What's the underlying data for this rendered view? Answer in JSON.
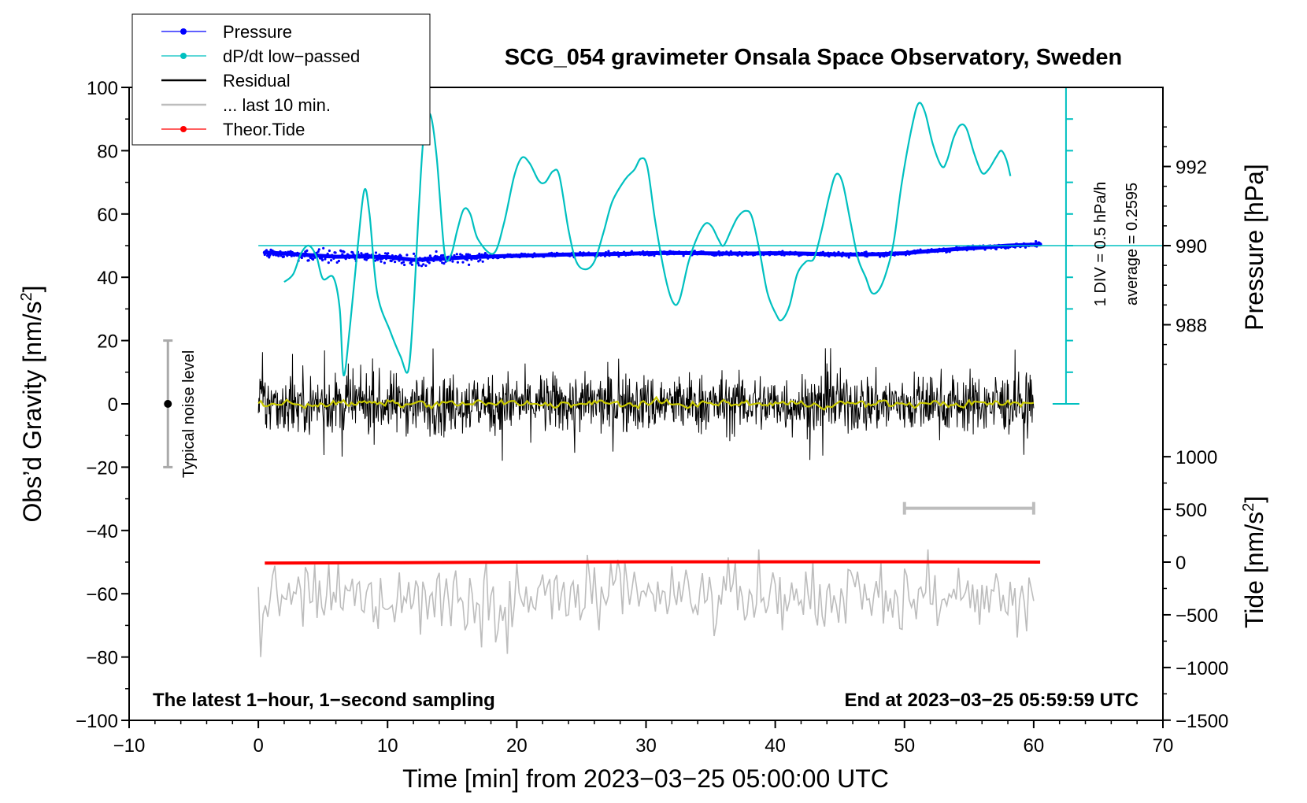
{
  "chart_data": {
    "type": "line",
    "title": "SCG_054 gravimeter Onsala Space Observatory, Sweden",
    "xlabel": "Time [min] from 2023−03−25 05:00:00 UTC",
    "ylabel_left": "Obs’d Gravity [nm/s",
    "ylabel_left_sup": "2",
    "ylabel_left_close": "]",
    "ylabel_pressure": "Pressure [hPa]",
    "ylabel_tide": "Tide [nm/s",
    "ylabel_tide_sup": "2",
    "ylabel_tide_close": "]",
    "xlim": [
      -10,
      70
    ],
    "ylim_left": [
      -100,
      100
    ],
    "x_ticks": [
      -10,
      0,
      10,
      20,
      30,
      40,
      50,
      60,
      70
    ],
    "x_tick_labels": [
      "−10",
      "0",
      "10",
      "20",
      "30",
      "40",
      "50",
      "60",
      "70"
    ],
    "y_ticks_left": [
      -100,
      -80,
      -60,
      -40,
      -20,
      0,
      20,
      40,
      60,
      80,
      100
    ],
    "y_tick_labels_left": [
      "−100",
      "−80",
      "−60",
      "−40",
      "−20",
      "0",
      "20",
      "40",
      "60",
      "80",
      "100"
    ],
    "pressure_axis": {
      "ticks": [
        988,
        990,
        992
      ],
      "tick_labels": [
        "988",
        "990",
        "992"
      ],
      "grav_at_990": 50,
      "grav_per_hpa": 12.5
    },
    "tide_axis": {
      "ticks": [
        -1500,
        -1000,
        -500,
        0,
        500,
        1000
      ],
      "tick_labels": [
        "−1500",
        "−1000",
        "−500",
        "0",
        "500",
        "1000"
      ],
      "grav_at_zero": -50,
      "grav_per_unit": 0.0333
    },
    "legend": {
      "placement": "top-left",
      "entries": [
        {
          "label": "Pressure",
          "color": "#0000ff",
          "marker": true
        },
        {
          "label": "dP/dt low−passed",
          "color": "#00c0c0",
          "marker": true
        },
        {
          "label": "Residual",
          "color": "#000000",
          "marker": false
        },
        {
          "label": "... last 10 min.",
          "color": "#bdbdbd",
          "marker": false
        },
        {
          "label": "Theor.Tide",
          "color": "#ff0000",
          "marker": true
        }
      ]
    },
    "dpdt_scale": {
      "label1": "1 DIV = 0.5 hPa/h",
      "label2": "average = 0.2595",
      "x": 62.5,
      "ymin": 0,
      "ymax": 100,
      "baseline_y": 50,
      "divisions": 10
    },
    "noise_bar": {
      "label": "Typical noise level",
      "x": -7,
      "y": 0,
      "ymin": -20,
      "ymax": 20
    },
    "last10_bracket": {
      "x0": 50,
      "x1": 60,
      "y": -33
    },
    "footer_left": "The latest 1−hour, 1−second sampling",
    "footer_right": "End at 2023−03−25 05:59:59 UTC",
    "series": [
      {
        "name": "Pressure",
        "color": "#0000ff",
        "points": [
          [
            0.5,
            47.8
          ],
          [
            2,
            47.5
          ],
          [
            4,
            47.0
          ],
          [
            6,
            46.5
          ],
          [
            8,
            46.6
          ],
          [
            10,
            46.4
          ],
          [
            12,
            45.5
          ],
          [
            14,
            45.8
          ],
          [
            16,
            46.3
          ],
          [
            18,
            46.6
          ],
          [
            20,
            46.8
          ],
          [
            22,
            47.0
          ],
          [
            24,
            47.2
          ],
          [
            26,
            47.3
          ],
          [
            28,
            47.4
          ],
          [
            30,
            47.6
          ],
          [
            32,
            47.7
          ],
          [
            34,
            47.6
          ],
          [
            36,
            47.5
          ],
          [
            38,
            47.5
          ],
          [
            40,
            47.6
          ],
          [
            42,
            47.5
          ],
          [
            44,
            47.3
          ],
          [
            46,
            47.2
          ],
          [
            48,
            47.3
          ],
          [
            50,
            47.6
          ],
          [
            52,
            48.3
          ],
          [
            54,
            48.9
          ],
          [
            56,
            49.4
          ],
          [
            58,
            50.0
          ],
          [
            60,
            50.3
          ],
          [
            60.5,
            50.4
          ]
        ]
      },
      {
        "name": "dP/dt low−passed",
        "color": "#00c0c0",
        "points": [
          [
            2,
            38.5
          ],
          [
            2.7,
            41
          ],
          [
            3.3,
            47.5
          ],
          [
            3.9,
            50
          ],
          [
            4.5,
            46.5
          ],
          [
            5,
            39.5
          ],
          [
            5.8,
            40
          ],
          [
            6.3,
            30
          ],
          [
            6.6,
            9
          ],
          [
            7.1,
            25
          ],
          [
            7.7,
            50
          ],
          [
            8.2,
            67.5
          ],
          [
            8.6,
            60
          ],
          [
            9.2,
            35
          ],
          [
            10.2,
            23
          ],
          [
            11,
            15
          ],
          [
            11.6,
            10.5
          ],
          [
            12,
            30
          ],
          [
            12.4,
            60
          ],
          [
            12.8,
            85
          ],
          [
            13.3,
            91.5
          ],
          [
            13.8,
            78
          ],
          [
            14.4,
            48
          ],
          [
            14.9,
            47
          ],
          [
            15.4,
            55
          ],
          [
            15.9,
            61.5
          ],
          [
            16.4,
            60
          ],
          [
            17,
            52
          ],
          [
            18.2,
            47.5
          ],
          [
            19,
            57
          ],
          [
            19.8,
            72
          ],
          [
            20.4,
            77.8
          ],
          [
            21,
            76
          ],
          [
            21.7,
            70.5
          ],
          [
            22.2,
            70
          ],
          [
            22.8,
            73.5
          ],
          [
            23.3,
            72
          ],
          [
            24,
            55
          ],
          [
            24.6,
            45
          ],
          [
            25.3,
            42.5
          ],
          [
            26,
            45
          ],
          [
            26.7,
            54
          ],
          [
            27.4,
            64
          ],
          [
            28.4,
            71
          ],
          [
            29.1,
            74
          ],
          [
            29.6,
            77.5
          ],
          [
            30.1,
            75
          ],
          [
            30.7,
            58
          ],
          [
            31.5,
            40
          ],
          [
            32.1,
            32
          ],
          [
            32.6,
            33
          ],
          [
            33.3,
            45
          ],
          [
            34,
            53
          ],
          [
            34.6,
            57
          ],
          [
            35.1,
            56
          ],
          [
            35.6,
            52
          ],
          [
            36,
            50
          ],
          [
            36.6,
            55
          ],
          [
            37.1,
            59
          ],
          [
            37.7,
            61
          ],
          [
            38.2,
            59
          ],
          [
            38.8,
            48
          ],
          [
            39.4,
            35
          ],
          [
            40.1,
            28
          ],
          [
            40.5,
            26.5
          ],
          [
            41.1,
            31
          ],
          [
            41.7,
            41
          ],
          [
            42.4,
            45
          ],
          [
            43,
            46
          ],
          [
            43.6,
            55
          ],
          [
            44.2,
            66
          ],
          [
            44.7,
            72.5
          ],
          [
            45.2,
            70
          ],
          [
            45.8,
            58
          ],
          [
            46.4,
            46
          ],
          [
            47,
            40
          ],
          [
            47.5,
            35
          ],
          [
            48.1,
            36.5
          ],
          [
            48.7,
            43
          ],
          [
            49.2,
            52
          ],
          [
            49.8,
            70
          ],
          [
            50.6,
            88
          ],
          [
            51.1,
            95
          ],
          [
            51.6,
            92
          ],
          [
            52.2,
            82
          ],
          [
            52.9,
            75
          ],
          [
            53.3,
            77
          ],
          [
            53.8,
            84
          ],
          [
            54.3,
            88
          ],
          [
            54.8,
            87
          ],
          [
            55.4,
            79
          ],
          [
            56,
            73
          ],
          [
            56.5,
            74
          ],
          [
            57.1,
            78
          ],
          [
            57.5,
            80
          ],
          [
            57.9,
            77
          ],
          [
            58.2,
            72
          ]
        ]
      },
      {
        "name": "Residual",
        "color": "#000000",
        "x_range": [
          0,
          60
        ],
        "amplitude_typical": 5,
        "amplitude_max": 18
      },
      {
        "name": "Residual (smoothed)",
        "color": "#c8c800",
        "x_range": [
          0,
          60
        ],
        "mean": 0
      },
      {
        "name": "... last 10 min.",
        "color": "#bdbdbd",
        "x_range": [
          0,
          60
        ],
        "center": -61,
        "amplitude_typical": 6,
        "range": [
          -80,
          -46
        ]
      },
      {
        "name": "Theor.Tide",
        "color": "#ff0000",
        "points": [
          [
            0.5,
            -50.3
          ],
          [
            10,
            -50.2
          ],
          [
            20,
            -50.0
          ],
          [
            30,
            -49.9
          ],
          [
            40,
            -49.9
          ],
          [
            50,
            -49.9
          ],
          [
            60.5,
            -50.0
          ]
        ]
      }
    ]
  }
}
